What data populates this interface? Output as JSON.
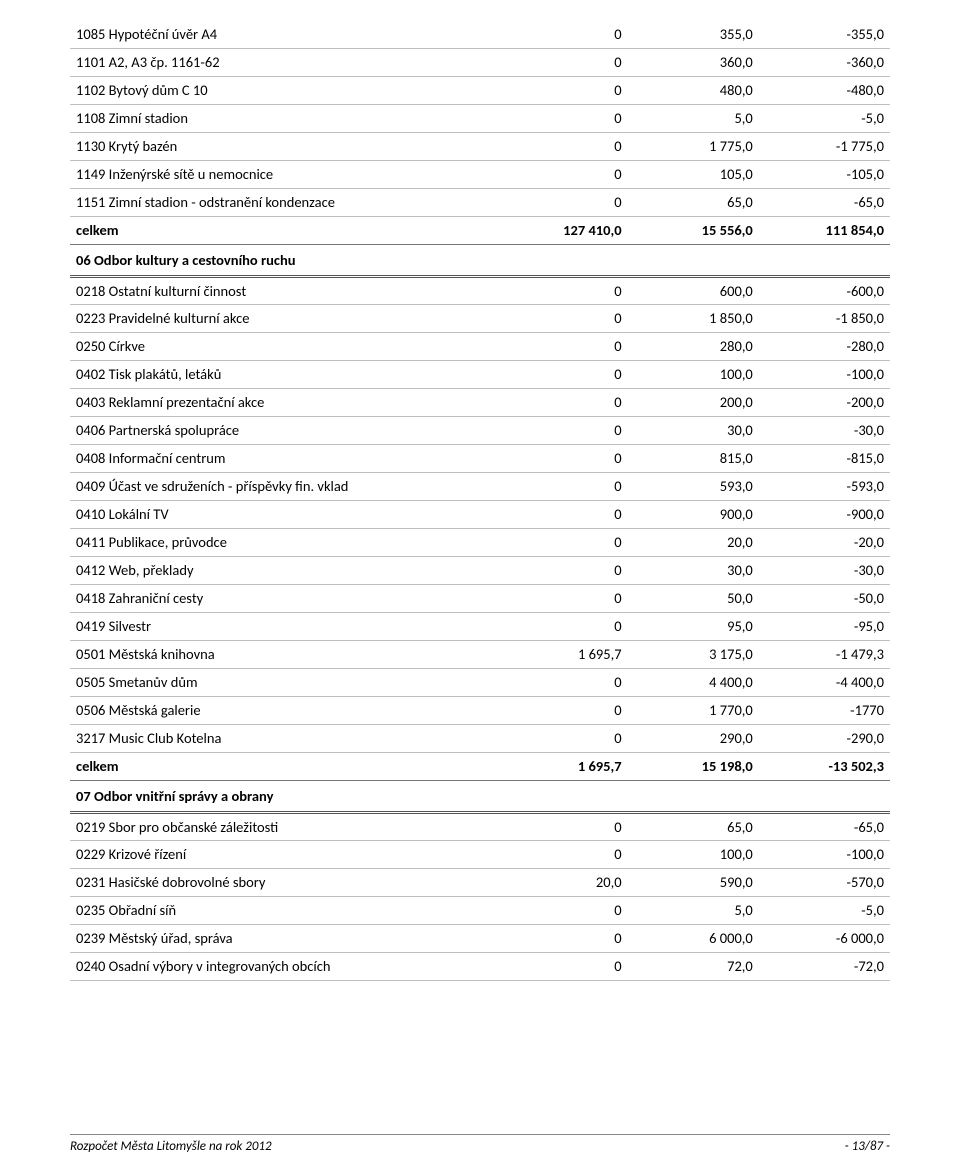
{
  "rows": [
    {
      "type": "normal",
      "label": "1085 Hypotéční úvěr A4",
      "c1": "0",
      "c2": "355,0",
      "c3": "-355,0"
    },
    {
      "type": "normal",
      "label": "1101 A2, A3 čp. 1161-62",
      "c1": "0",
      "c2": "360,0",
      "c3": "-360,0"
    },
    {
      "type": "normal",
      "label": "1102 Bytový dům C 10",
      "c1": "0",
      "c2": "480,0",
      "c3": "-480,0"
    },
    {
      "type": "normal",
      "label": "1108  Zimní stadion",
      "c1": "0",
      "c2": "5,0",
      "c3": "-5,0"
    },
    {
      "type": "normal",
      "label": "1130 Krytý bazén",
      "c1": "0",
      "c2": "1 775,0",
      "c3": "-1 775,0"
    },
    {
      "type": "normal",
      "label": "1149 Inženýrské sítě u nemocnice",
      "c1": "0",
      "c2": "105,0",
      "c3": "-105,0"
    },
    {
      "type": "normal",
      "label": "1151 Zimní stadion - odstranění kondenzace",
      "c1": "0",
      "c2": "65,0",
      "c3": "-65,0"
    },
    {
      "type": "bold",
      "label": "celkem",
      "c1": "127 410,0",
      "c2": "15 556,0",
      "c3": "111 854,0"
    },
    {
      "type": "section",
      "label": "06 Odbor kultury a cestovního ruchu",
      "c1": "",
      "c2": "",
      "c3": ""
    },
    {
      "type": "normal",
      "label": "0218 Ostatní kulturní činnost",
      "c1": "0",
      "c2": "600,0",
      "c3": "-600,0"
    },
    {
      "type": "normal",
      "label": "0223 Pravidelné kulturní akce",
      "c1": "0",
      "c2": "1 850,0",
      "c3": "-1 850,0"
    },
    {
      "type": "normal",
      "label": "0250 Církve",
      "c1": "0",
      "c2": "280,0",
      "c3": "-280,0"
    },
    {
      "type": "normal",
      "label": "0402 Tisk plakátů, letáků",
      "c1": "0",
      "c2": "100,0",
      "c3": "-100,0"
    },
    {
      "type": "normal",
      "label": "0403 Reklamní prezentační akce",
      "c1": "0",
      "c2": "200,0",
      "c3": "-200,0"
    },
    {
      "type": "normal",
      "label": "0406 Partnerská spolupráce",
      "c1": "0",
      "c2": "30,0",
      "c3": "-30,0"
    },
    {
      "type": "normal",
      "label": "0408 Informační centrum",
      "c1": "0",
      "c2": "815,0",
      "c3": "-815,0"
    },
    {
      "type": "normal",
      "label": "0409 Účast ve sdruženích - příspěvky fin. vklad",
      "c1": "0",
      "c2": "593,0",
      "c3": "-593,0"
    },
    {
      "type": "normal",
      "label": "0410 Lokální TV",
      "c1": "0",
      "c2": "900,0",
      "c3": "-900,0"
    },
    {
      "type": "normal",
      "label": "0411 Publikace, průvodce",
      "c1": "0",
      "c2": "20,0",
      "c3": "-20,0"
    },
    {
      "type": "normal",
      "label": "0412 Web, překlady",
      "c1": "0",
      "c2": "30,0",
      "c3": "-30,0"
    },
    {
      "type": "normal",
      "label": "0418 Zahraniční cesty",
      "c1": "0",
      "c2": "50,0",
      "c3": "-50,0"
    },
    {
      "type": "normal",
      "label": "0419 Silvestr",
      "c1": "0",
      "c2": "95,0",
      "c3": "-95,0"
    },
    {
      "type": "normal",
      "label": "0501 Městská knihovna",
      "c1": "1 695,7",
      "c2": "3 175,0",
      "c3": "-1 479,3"
    },
    {
      "type": "normal",
      "label": "0505 Smetanův dům",
      "c1": "0",
      "c2": "4 400,0",
      "c3": "-4 400,0"
    },
    {
      "type": "normal",
      "label": "0506 Městská galerie",
      "c1": "0",
      "c2": "1 770,0",
      "c3": "-1770"
    },
    {
      "type": "normal",
      "label": "3217 Music Club Kotelna",
      "c1": "0",
      "c2": "290,0",
      "c3": "-290,0"
    },
    {
      "type": "bold",
      "label": "celkem",
      "c1": "1 695,7",
      "c2": "15 198,0",
      "c3": "-13 502,3"
    },
    {
      "type": "section",
      "label": "07 Odbor vnitřní správy a obrany",
      "c1": "",
      "c2": "",
      "c3": ""
    },
    {
      "type": "normal",
      "label": "0219 Sbor pro občanské záležitosti",
      "c1": "0",
      "c2": "65,0",
      "c3": "-65,0"
    },
    {
      "type": "normal",
      "label": "0229 Krizové řízení",
      "c1": "0",
      "c2": "100,0",
      "c3": "-100,0"
    },
    {
      "type": "normal",
      "label": "0231 Hasičské dobrovolné sbory",
      "c1": "20,0",
      "c2": "590,0",
      "c3": "-570,0"
    },
    {
      "type": "normal",
      "label": "0235 Obřadní síň",
      "c1": "0",
      "c2": "5,0",
      "c3": "-5,0"
    },
    {
      "type": "normal",
      "label": "0239 Městský úřad, správa",
      "c1": "0",
      "c2": "6 000,0",
      "c3": "-6 000,0"
    },
    {
      "type": "normal",
      "label": "0240 Osadní výbory v integrovaných obcích",
      "c1": "0",
      "c2": "72,0",
      "c3": "-72,0"
    }
  ],
  "footer": {
    "left": "Rozpočet Města Litomyšle na rok 2012",
    "right": "- 13/87 -"
  }
}
